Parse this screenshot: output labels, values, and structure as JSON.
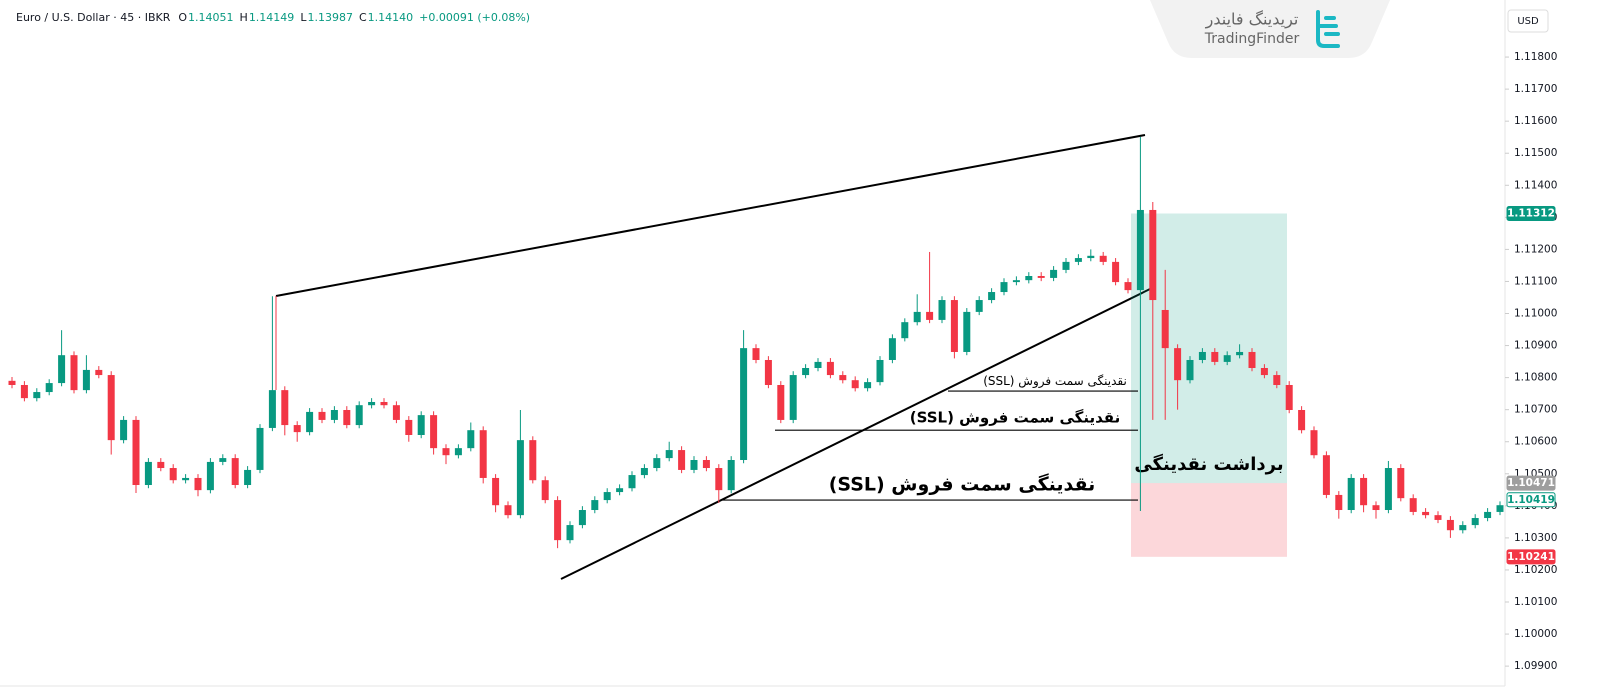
{
  "header": {
    "symbol": "Euro / U.S. Dollar · 45 · IBKR",
    "ohlc": [
      {
        "key": "O",
        "value": "1.14051"
      },
      {
        "key": "H",
        "value": "1.14149"
      },
      {
        "key": "L",
        "value": "1.13987"
      },
      {
        "key": "C",
        "value": "1.14140"
      }
    ],
    "change": "+0.00091 (+0.08%)",
    "currency": "USD"
  },
  "logo": {
    "fa": "تریدینگ فایندر",
    "en": "TradingFinder"
  },
  "chart_data": {
    "type": "candlestick",
    "up_color": "#089981",
    "down_color": "#f23645",
    "ylim": [
      1.09838,
      1.11978
    ],
    "yticks": [
      {
        "value": 1.099,
        "label": "1.09900"
      },
      {
        "value": 1.1,
        "label": "1.10000"
      },
      {
        "value": 1.101,
        "label": "1.10100"
      },
      {
        "value": 1.102,
        "label": "1.10200"
      },
      {
        "value": 1.103,
        "label": "1.10300"
      },
      {
        "value": 1.104,
        "label": "1.10400"
      },
      {
        "value": 1.105,
        "label": "1.10500"
      },
      {
        "value": 1.106,
        "label": "1.10600"
      },
      {
        "value": 1.107,
        "label": "1.10700"
      },
      {
        "value": 1.108,
        "label": "1.10800"
      },
      {
        "value": 1.109,
        "label": "1.10900"
      },
      {
        "value": 1.11,
        "label": "1.11000"
      },
      {
        "value": 1.111,
        "label": "1.11100"
      },
      {
        "value": 1.112,
        "label": "1.11200"
      },
      {
        "value": 1.113,
        "label": "1.11300"
      },
      {
        "value": 1.114,
        "label": "1.11400"
      },
      {
        "value": 1.115,
        "label": "1.11500"
      },
      {
        "value": 1.116,
        "label": "1.11600"
      },
      {
        "value": 1.117,
        "label": "1.11700"
      },
      {
        "value": 1.118,
        "label": "1.11800"
      }
    ],
    "open": [
      1.1079,
      1.10777,
      1.10736,
      1.10755,
      1.10783,
      1.1087,
      1.10761,
      1.10824,
      1.10808,
      1.10605,
      1.10668,
      1.10465,
      1.10537,
      1.10518,
      1.1048,
      1.10487,
      1.10449,
      1.10537,
      1.10549,
      1.10465,
      1.10512,
      1.10643,
      1.10761,
      1.10652,
      1.1063,
      1.10693,
      1.10668,
      1.10699,
      1.10652,
      1.10714,
      1.10724,
      1.10714,
      1.10668,
      1.10621,
      1.10683,
      1.1058,
      1.10558,
      1.1058,
      1.10636,
      1.10487,
      1.10402,
      1.10371,
      1.10605,
      1.1048,
      1.10418,
      1.10293,
      1.1034,
      1.10387,
      1.10418,
      1.10443,
      1.10455,
      1.10496,
      1.10518,
      1.10549,
      1.10574,
      1.10512,
      1.10543,
      1.10518,
      1.10449,
      1.10543,
      1.10892,
      1.10855,
      1.10777,
      1.10668,
      1.10808,
      1.1083,
      1.10849,
      1.10808,
      1.10792,
      1.10767,
      1.10786,
      1.10855,
      1.10923,
      1.10973,
      1.11005,
      1.1098,
      1.11042,
      1.1088,
      1.11005,
      1.11042,
      1.11067,
      1.11098,
      1.11104,
      1.11117,
      1.11111,
      1.11136,
      1.11161,
      1.11173,
      1.1118,
      1.11161,
      1.11098,
      1.11073,
      1.11323,
      1.11011,
      1.10892,
      1.10792,
      1.10855,
      1.1088,
      1.10849,
      1.1087,
      1.1088,
      1.1083,
      1.10808,
      1.10777,
      1.10699,
      1.10636,
      1.10558,
      1.10434,
      1.10387,
      1.10487,
      1.10402,
      1.10387,
      1.10518,
      1.10424,
      1.10381,
      1.10371,
      1.10356,
      1.10324,
      1.1034,
      1.10362,
      1.10381
    ],
    "high": [
      1.10802,
      1.10789,
      1.10767,
      1.10795,
      1.10948,
      1.10882,
      1.1087,
      1.10836,
      1.1082,
      1.1068,
      1.1068,
      1.10549,
      1.10549,
      1.1053,
      1.10499,
      1.10499,
      1.10549,
      1.10561,
      1.10561,
      1.10524,
      1.10655,
      1.11054,
      1.10773,
      1.10664,
      1.10705,
      1.10705,
      1.10711,
      1.10711,
      1.10726,
      1.10736,
      1.10736,
      1.10726,
      1.1068,
      1.10695,
      1.10695,
      1.10592,
      1.10592,
      1.1066,
      1.10648,
      1.10499,
      1.10414,
      1.10699,
      1.10617,
      1.10492,
      1.1043,
      1.10352,
      1.10399,
      1.1043,
      1.10455,
      1.10467,
      1.10508,
      1.1053,
      1.10561,
      1.106,
      1.10586,
      1.10555,
      1.10555,
      1.1053,
      1.10555,
      1.10948,
      1.10904,
      1.10867,
      1.10789,
      1.1082,
      1.10842,
      1.10861,
      1.10861,
      1.1082,
      1.10804,
      1.10798,
      1.10867,
      1.10935,
      1.10985,
      1.1106,
      1.11192,
      1.11054,
      1.11054,
      1.11017,
      1.11054,
      1.11079,
      1.1111,
      1.11116,
      1.11129,
      1.11129,
      1.11148,
      1.11173,
      1.11185,
      1.112,
      1.11192,
      1.11173,
      1.1111,
      1.11551,
      1.11348,
      1.11136,
      1.10904,
      1.10867,
      1.10892,
      1.10892,
      1.10882,
      1.10904,
      1.10892,
      1.10842,
      1.1082,
      1.10789,
      1.10711,
      1.10648,
      1.1057,
      1.10446,
      1.10499,
      1.10499,
      1.10414,
      1.1054,
      1.1053,
      1.10436,
      1.10393,
      1.10383,
      1.10368,
      1.10352,
      1.10374,
      1.10393,
      1.10414
    ],
    "low": [
      1.10767,
      1.10726,
      1.10726,
      1.10745,
      1.10773,
      1.10751,
      1.10751,
      1.10798,
      1.1056,
      1.10595,
      1.1044,
      1.10455,
      1.10508,
      1.1047,
      1.1047,
      1.1043,
      1.10439,
      1.10527,
      1.10455,
      1.10455,
      1.10502,
      1.10633,
      1.1062,
      1.106,
      1.1062,
      1.10658,
      1.10658,
      1.10642,
      1.10642,
      1.10704,
      1.10704,
      1.10658,
      1.106,
      1.10611,
      1.1056,
      1.1053,
      1.10548,
      1.1057,
      1.1047,
      1.1038,
      1.10361,
      1.10361,
      1.1047,
      1.10408,
      1.10268,
      1.10283,
      1.1033,
      1.10377,
      1.10408,
      1.10433,
      1.10445,
      1.10486,
      1.10508,
      1.10539,
      1.10502,
      1.10502,
      1.10508,
      1.10409,
      1.10439,
      1.10533,
      1.10845,
      1.10767,
      1.10658,
      1.10658,
      1.10798,
      1.1082,
      1.10798,
      1.10782,
      1.10757,
      1.10757,
      1.10776,
      1.10845,
      1.10913,
      1.10963,
      1.1097,
      1.1097,
      1.1086,
      1.1087,
      1.10995,
      1.11032,
      1.11057,
      1.11088,
      1.11094,
      1.11101,
      1.11101,
      1.11126,
      1.11151,
      1.11163,
      1.11151,
      1.11088,
      1.11063,
      1.10384,
      1.10668,
      1.10668,
      1.107,
      1.10782,
      1.10845,
      1.10839,
      1.10839,
      1.1086,
      1.1082,
      1.10798,
      1.10767,
      1.10689,
      1.10626,
      1.10548,
      1.10424,
      1.1036,
      1.10377,
      1.1038,
      1.1036,
      1.10377,
      1.10414,
      1.10371,
      1.10361,
      1.10346,
      1.103,
      1.10314,
      1.1033,
      1.10352,
      1.10371
    ],
    "close": [
      1.10777,
      1.10736,
      1.10755,
      1.10783,
      1.1087,
      1.10761,
      1.10824,
      1.10808,
      1.10605,
      1.10668,
      1.10465,
      1.10537,
      1.10518,
      1.1048,
      1.10487,
      1.10449,
      1.10537,
      1.10549,
      1.10465,
      1.10512,
      1.10643,
      1.10761,
      1.10652,
      1.1063,
      1.10693,
      1.10668,
      1.10699,
      1.10652,
      1.10714,
      1.10724,
      1.10714,
      1.10668,
      1.10621,
      1.10683,
      1.1058,
      1.10558,
      1.1058,
      1.10636,
      1.10487,
      1.10402,
      1.10371,
      1.10605,
      1.1048,
      1.10418,
      1.10293,
      1.1034,
      1.10387,
      1.10418,
      1.10443,
      1.10455,
      1.10496,
      1.10518,
      1.10549,
      1.10574,
      1.10512,
      1.10543,
      1.10518,
      1.10449,
      1.10543,
      1.10892,
      1.10855,
      1.10777,
      1.10668,
      1.10808,
      1.1083,
      1.10849,
      1.10808,
      1.10792,
      1.10767,
      1.10786,
      1.10855,
      1.10923,
      1.10973,
      1.11005,
      1.1098,
      1.11042,
      1.1088,
      1.11005,
      1.11042,
      1.11067,
      1.11098,
      1.11104,
      1.11117,
      1.11111,
      1.11136,
      1.11161,
      1.11173,
      1.1118,
      1.11161,
      1.11098,
      1.11073,
      1.11323,
      1.11042,
      1.10892,
      1.10792,
      1.10855,
      1.1088,
      1.10849,
      1.1087,
      1.1088,
      1.1083,
      1.10808,
      1.10777,
      1.10699,
      1.10636,
      1.10558,
      1.10434,
      1.10387,
      1.10487,
      1.10402,
      1.10387,
      1.10518,
      1.10424,
      1.10381,
      1.10371,
      1.10356,
      1.10324,
      1.1034,
      1.10362,
      1.10381,
      1.10402
    ],
    "price_labels": [
      {
        "value": 1.11312,
        "color": "#089981"
      },
      {
        "value": 1.10471,
        "color": "#9e9e9e"
      },
      {
        "value": 1.10419,
        "color": "#089981",
        "outline": true
      },
      {
        "value": 1.10241,
        "color": "#f23645"
      }
    ],
    "annotations": [
      {
        "text": "نقدینگی سمت فروش (SSL)",
        "price": 1.10758
      },
      {
        "text": "نقدینگی سمت فروش (SSL)",
        "price": 1.10636
      },
      {
        "text": "نقدینگی سمت فروش (SSL)",
        "price": 1.10418
      }
    ],
    "box_label": "برداشت نقدینگی"
  }
}
